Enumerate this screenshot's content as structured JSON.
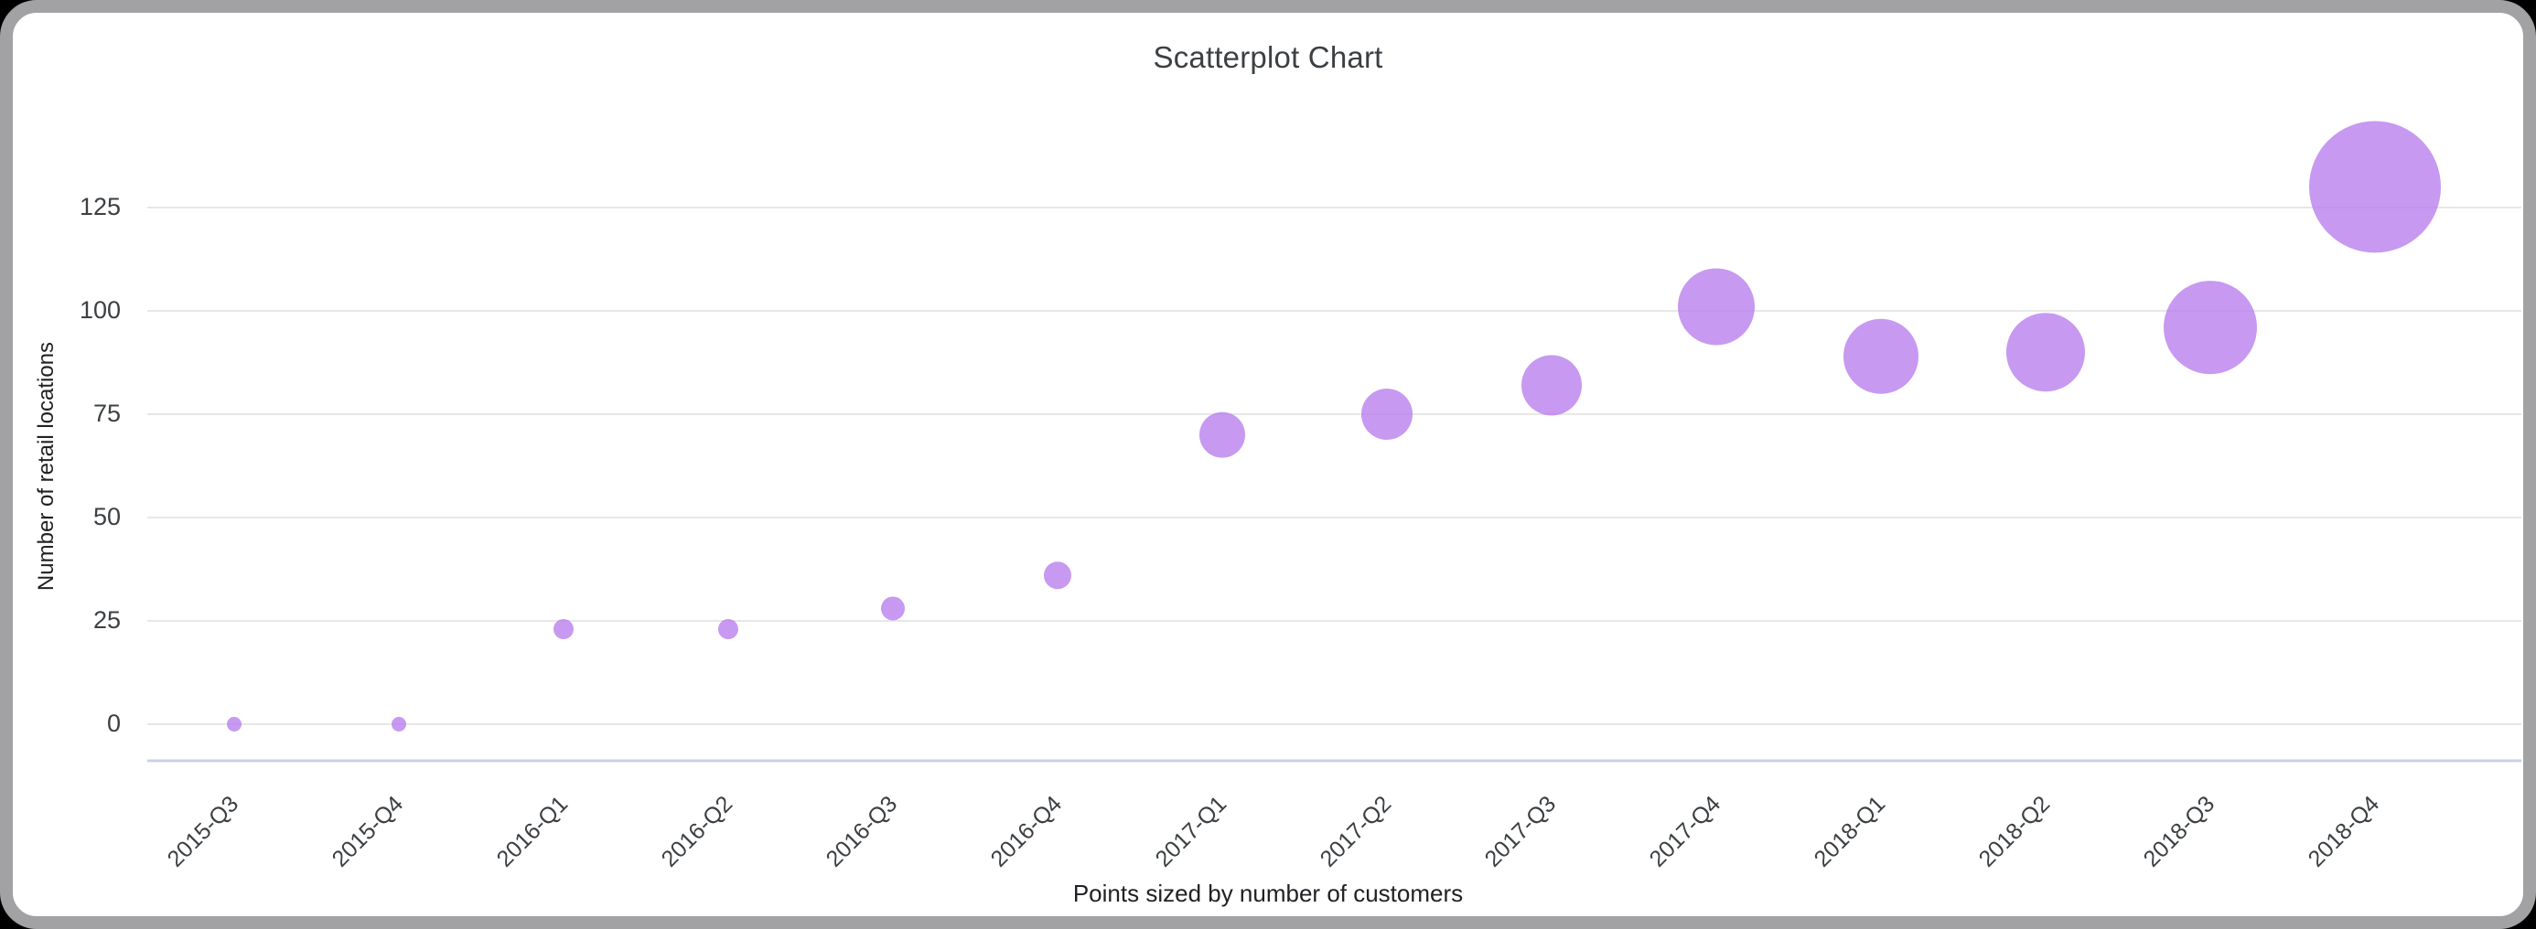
{
  "chart": {
    "title": "Scatterplot Chart",
    "caption": "Points sized by number of customers",
    "y_axis_label": "Number of retail locations"
  },
  "chart_data": {
    "type": "scatter",
    "subtype": "bubble",
    "title": "Scatterplot Chart",
    "xlabel": "Points sized by number of customers",
    "ylabel": "Number of retail locations",
    "categories": [
      "2015-Q3",
      "2015-Q4",
      "2016-Q1",
      "2016-Q2",
      "2016-Q3",
      "2016-Q4",
      "2017-Q1",
      "2017-Q2",
      "2017-Q3",
      "2017-Q4",
      "2018-Q1",
      "2018-Q2",
      "2018-Q3",
      "2018-Q4"
    ],
    "series": [
      {
        "name": "Number of retail locations",
        "values": [
          0,
          0,
          23,
          23,
          28,
          36,
          70,
          75,
          82,
          101,
          89,
          90,
          96,
          130
        ]
      }
    ],
    "size_encoding": "Points sized by number of customers",
    "marker_radii_px": [
      8,
      8,
      11,
      11,
      13,
      15,
      25,
      28,
      33,
      42,
      41,
      43,
      51,
      72
    ],
    "yticks": [
      0,
      25,
      50,
      75,
      100,
      125
    ],
    "ylim": [
      0,
      137
    ],
    "grid": true,
    "legend": "none",
    "marker_color": "#b97fee",
    "marker_opacity": 0.8,
    "gridline_color": "#e7e7e7",
    "baseline_color": "#c9d2e8",
    "text_color": "#3c4043"
  }
}
